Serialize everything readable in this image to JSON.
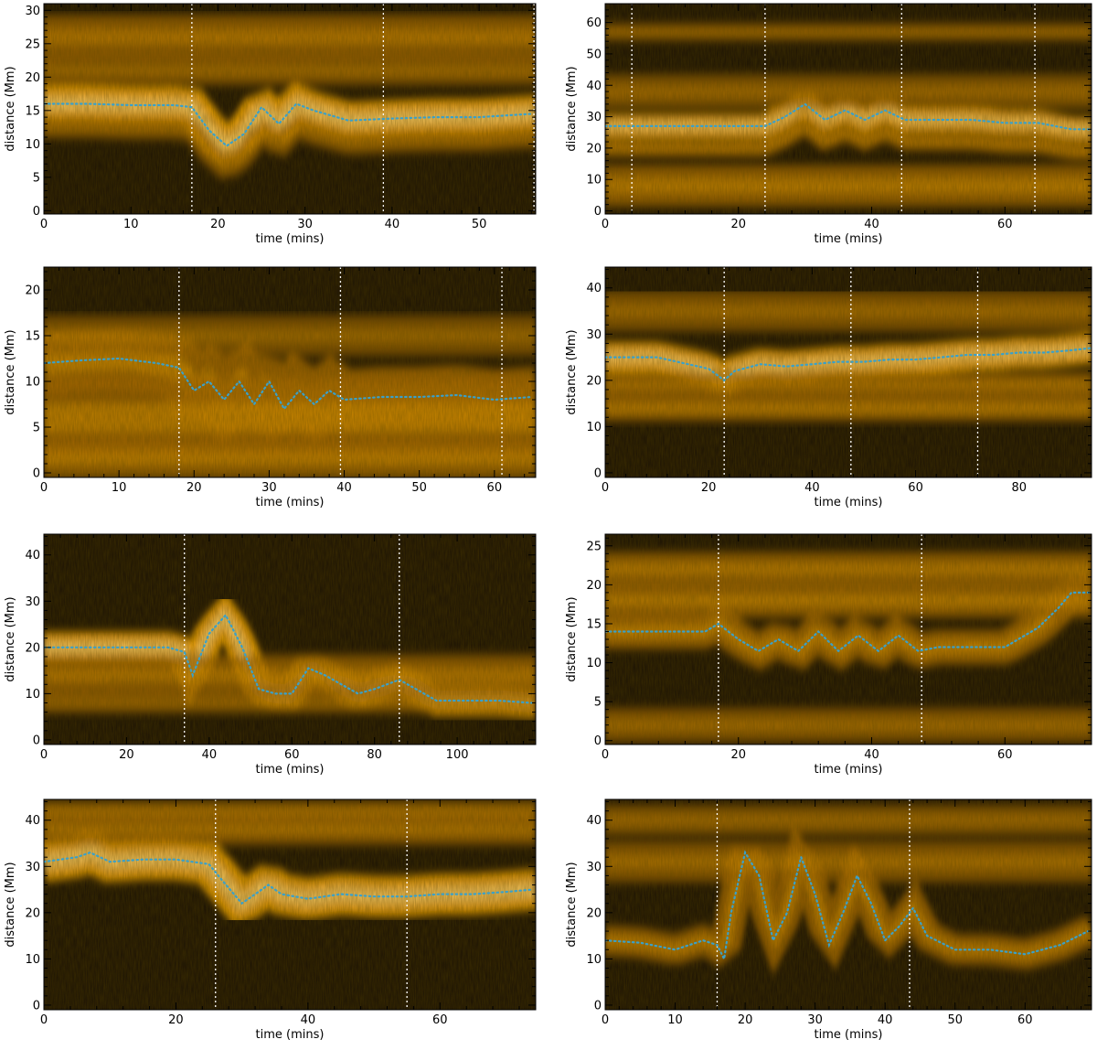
{
  "figure": {
    "panel_count": 8,
    "background_color": "#ffffff",
    "colors": {
      "dark": "#1b1204",
      "mid": "#a86a05",
      "bright": "#f7a800",
      "peak": "#ffe9b0",
      "track": "#3aa0c8",
      "marker": "#ffffff"
    }
  },
  "chart_data": [
    {
      "type": "heatmap",
      "panel": "a",
      "xlabel": "time (mins)",
      "ylabel": "distance (Mm)",
      "xlim": [
        0,
        56.5
      ],
      "ylim": [
        -0.5,
        31
      ],
      "xticks": [
        0,
        10,
        20,
        30,
        40,
        50
      ],
      "yticks": [
        0,
        5,
        10,
        15,
        20,
        25,
        30
      ],
      "markers_x": [
        17,
        39,
        56.3
      ],
      "series": [
        {
          "x": [
            0,
            5,
            10,
            15,
            17,
            19,
            21,
            23,
            25,
            27,
            29,
            31,
            35,
            40,
            45,
            50,
            56
          ],
          "y": [
            16,
            16,
            15.8,
            15.8,
            15.5,
            12,
            9.7,
            11.5,
            15.5,
            13,
            16,
            15,
            13.5,
            13.8,
            14,
            14,
            14.5
          ]
        }
      ],
      "bands": [
        {
          "y": 16,
          "w": 2.5,
          "a": 1.0,
          "follow": true
        },
        {
          "y": 26,
          "w": 3,
          "a": 0.55,
          "follow": false
        },
        {
          "y": 21,
          "w": 2,
          "a": 0.35,
          "follow": false
        },
        {
          "y": 12.5,
          "w": 1.5,
          "a": 0.35,
          "follow": true
        }
      ]
    },
    {
      "type": "heatmap",
      "panel": "b",
      "xlabel": "time (mins)",
      "ylabel": "distance (Mm)",
      "xlim": [
        0,
        73
      ],
      "ylim": [
        -1,
        66
      ],
      "xticks": [
        0,
        20,
        40,
        60
      ],
      "yticks": [
        0,
        10,
        20,
        30,
        40,
        50,
        60
      ],
      "markers_x": [
        4,
        24,
        44.5,
        64.5
      ],
      "series": [
        {
          "x": [
            0,
            10,
            20,
            24,
            27,
            30,
            33,
            36,
            39,
            42,
            45,
            50,
            55,
            60,
            65,
            70,
            73
          ],
          "y": [
            27,
            27,
            27,
            27,
            30,
            34,
            29,
            32,
            29,
            32,
            29,
            29,
            29,
            28,
            28,
            26,
            26
          ]
        }
      ],
      "bands": [
        {
          "y": 27,
          "w": 3.5,
          "a": 0.9,
          "follow": true
        },
        {
          "y": 20,
          "w": 2.5,
          "a": 0.7,
          "follow": true
        },
        {
          "y": 8,
          "w": 6,
          "a": 0.65,
          "follow": false
        },
        {
          "y": 57,
          "w": 2.5,
          "a": 0.35,
          "follow": false
        },
        {
          "y": 38,
          "w": 5,
          "a": 0.3,
          "follow": false
        }
      ]
    },
    {
      "type": "heatmap",
      "panel": "c",
      "xlabel": "time (mins)",
      "ylabel": "distance (Mm)",
      "xlim": [
        0,
        65.5
      ],
      "ylim": [
        -0.5,
        22.5
      ],
      "xticks": [
        0,
        10,
        20,
        30,
        40,
        50,
        60
      ],
      "yticks": [
        0,
        5,
        10,
        15,
        20
      ],
      "markers_x": [
        18,
        39.5,
        61
      ],
      "series": [
        {
          "x": [
            0,
            5,
            10,
            15,
            18,
            20,
            22,
            24,
            26,
            28,
            30,
            32,
            34,
            36,
            38,
            40,
            45,
            50,
            55,
            60,
            65
          ],
          "y": [
            12,
            12.3,
            12.5,
            12,
            11.5,
            9,
            10,
            8,
            10,
            7.5,
            10,
            7,
            9,
            7.5,
            9,
            8,
            8.3,
            8.3,
            8.5,
            8,
            8.3
          ]
        }
      ],
      "bands": [
        {
          "y": 12,
          "w": 3,
          "a": 0.8,
          "follow": true
        },
        {
          "y": 6,
          "w": 4,
          "a": 0.7,
          "follow": false
        },
        {
          "y": 1.5,
          "w": 2,
          "a": 0.6,
          "follow": false
        },
        {
          "y": 15,
          "w": 2,
          "a": 0.25,
          "follow": false
        }
      ]
    },
    {
      "type": "heatmap",
      "panel": "d",
      "xlabel": "time (mins)",
      "ylabel": "distance (Mm)",
      "xlim": [
        0,
        94
      ],
      "ylim": [
        -1,
        44.5
      ],
      "xticks": [
        0,
        20,
        40,
        60,
        80
      ],
      "yticks": [
        0,
        10,
        20,
        30,
        40
      ],
      "markers_x": [
        23,
        47.5,
        72
      ],
      "series": [
        {
          "x": [
            0,
            10,
            20,
            23,
            25,
            30,
            35,
            40,
            45,
            50,
            55,
            60,
            65,
            70,
            75,
            80,
            85,
            90,
            94
          ],
          "y": [
            25,
            25,
            22.5,
            20,
            22,
            23.5,
            23,
            23.5,
            24,
            24,
            24.5,
            24.5,
            25,
            25.5,
            25.5,
            26,
            26,
            26.5,
            27
          ]
        }
      ],
      "bands": [
        {
          "y": 25,
          "w": 3,
          "a": 0.95,
          "follow": true
        },
        {
          "y": 19,
          "w": 2.5,
          "a": 0.55,
          "follow": false
        },
        {
          "y": 14,
          "w": 2.5,
          "a": 0.65,
          "follow": false
        },
        {
          "y": 35,
          "w": 4,
          "a": 0.3,
          "follow": false
        }
      ]
    },
    {
      "type": "heatmap",
      "panel": "e",
      "xlabel": "time (mins)",
      "ylabel": "distance (Mm)",
      "xlim": [
        0,
        119
      ],
      "ylim": [
        -1,
        44.5
      ],
      "xticks": [
        0,
        20,
        40,
        60,
        80,
        100
      ],
      "yticks": [
        0,
        10,
        20,
        30,
        40
      ],
      "markers_x": [
        34,
        86
      ],
      "series": [
        {
          "x": [
            0,
            10,
            20,
            30,
            34,
            36,
            40,
            44,
            48,
            52,
            56,
            60,
            64,
            68,
            72,
            76,
            80,
            86,
            90,
            95,
            100,
            105,
            110,
            118
          ],
          "y": [
            20,
            20,
            20,
            20,
            19,
            14,
            23,
            27,
            20,
            11,
            10,
            10,
            15.5,
            14,
            12,
            10,
            11,
            13,
            11,
            8.5,
            8.5,
            8.5,
            8.5,
            8
          ]
        }
      ],
      "bands": [
        {
          "y": 20,
          "w": 3,
          "a": 1.0,
          "follow": true
        },
        {
          "y": 14,
          "w": 4,
          "a": 0.55,
          "follow": false
        },
        {
          "y": 8,
          "w": 2,
          "a": 0.3,
          "follow": false
        }
      ]
    },
    {
      "type": "heatmap",
      "panel": "f",
      "xlabel": "time (mins)",
      "ylabel": "distance (Mm)",
      "xlim": [
        0,
        73
      ],
      "ylim": [
        -0.5,
        26.5
      ],
      "xticks": [
        0,
        20,
        40,
        60
      ],
      "yticks": [
        0,
        5,
        10,
        15,
        20,
        25
      ],
      "markers_x": [
        17,
        47.5
      ],
      "series": [
        {
          "x": [
            0,
            5,
            10,
            15,
            17,
            20,
            23,
            26,
            29,
            32,
            35,
            38,
            41,
            44,
            47,
            50,
            55,
            60,
            65,
            68,
            70,
            73
          ],
          "y": [
            14,
            14,
            14,
            14,
            15,
            13,
            11.5,
            13,
            11.5,
            14,
            11.5,
            13.5,
            11.5,
            13.5,
            11.5,
            12,
            12,
            12,
            14.5,
            17,
            19,
            19
          ]
        }
      ],
      "bands": [
        {
          "y": 14,
          "w": 2,
          "a": 0.8,
          "follow": true
        },
        {
          "y": 18,
          "w": 2,
          "a": 0.65,
          "follow": false
        },
        {
          "y": 22,
          "w": 2,
          "a": 0.6,
          "follow": false
        },
        {
          "y": 2,
          "w": 2,
          "a": 0.35,
          "follow": false
        }
      ]
    },
    {
      "type": "heatmap",
      "panel": "g",
      "xlabel": "time (mins)",
      "ylabel": "distance (Mm)",
      "xlim": [
        0,
        74.5
      ],
      "ylim": [
        -1,
        44.5
      ],
      "xticks": [
        0,
        20,
        40,
        60
      ],
      "yticks": [
        0,
        10,
        20,
        30,
        40
      ],
      "markers_x": [
        26,
        55
      ],
      "series": [
        {
          "x": [
            0,
            5,
            7,
            10,
            15,
            20,
            25,
            27,
            30,
            32,
            34,
            36,
            40,
            45,
            50,
            55,
            60,
            65,
            70,
            74
          ],
          "y": [
            31,
            32,
            33,
            31,
            31.5,
            31.5,
            30.5,
            27,
            22,
            24,
            26,
            24,
            23,
            24,
            23.5,
            23.5,
            24,
            24,
            24.5,
            25
          ]
        }
      ],
      "bands": [
        {
          "y": 31,
          "w": 4,
          "a": 0.9,
          "follow": true
        },
        {
          "y": 38,
          "w": 3,
          "a": 0.5,
          "follow": false
        },
        {
          "y": 42,
          "w": 2,
          "a": 0.45,
          "follow": false
        }
      ]
    },
    {
      "type": "heatmap",
      "panel": "h",
      "xlabel": "time (mins)",
      "ylabel": "distance (Mm)",
      "xlim": [
        0,
        69.5
      ],
      "ylim": [
        -1,
        44.5
      ],
      "xticks": [
        0,
        10,
        20,
        30,
        40,
        50,
        60
      ],
      "yticks": [
        0,
        10,
        20,
        30,
        40
      ],
      "markers_x": [
        16,
        43.5
      ],
      "series": [
        {
          "x": [
            0,
            5,
            10,
            14,
            16,
            17,
            18,
            20,
            22,
            24,
            26,
            28,
            30,
            32,
            34,
            36,
            38,
            40,
            42,
            44,
            46,
            50,
            55,
            60,
            65,
            69
          ],
          "y": [
            14,
            13.5,
            12,
            14,
            13,
            10,
            20,
            33,
            28,
            14,
            20,
            32,
            24,
            13,
            20,
            28,
            22,
            14,
            17,
            21,
            15,
            12,
            12,
            11,
            13,
            16
          ]
        }
      ],
      "bands": [
        {
          "y": 14,
          "w": 3,
          "a": 0.7,
          "follow": true
        },
        {
          "y": 31,
          "w": 4,
          "a": 0.4,
          "follow": false
        },
        {
          "y": 40,
          "w": 3,
          "a": 0.3,
          "follow": false
        }
      ]
    }
  ]
}
